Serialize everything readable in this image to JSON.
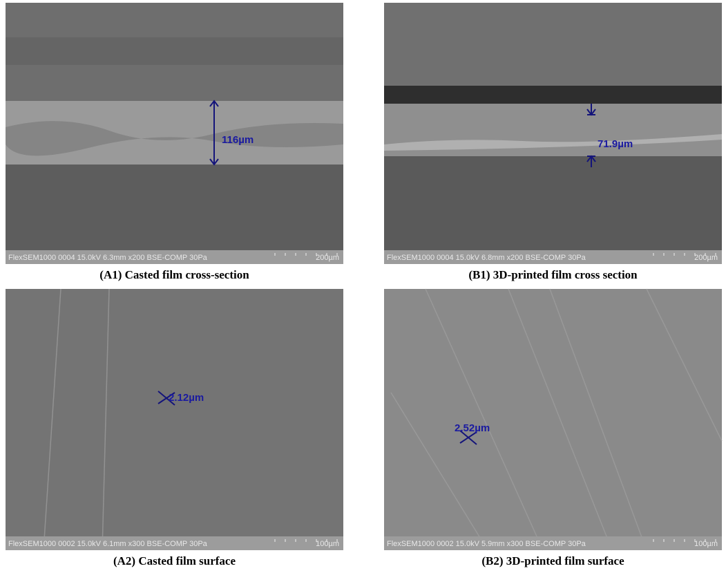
{
  "panels": [
    {
      "caption": "(A1) Casted film cross-section",
      "info": "FlexSEM1000 0004 15.0kV 6.3mm x200 BSE-COMP 30Pa",
      "scale": "200µm",
      "measurement": "116µm"
    },
    {
      "caption": "(B1) 3D-printed film cross section",
      "info": "FlexSEM1000 0004 15.0kV 6.8mm x200 BSE-COMP 30Pa",
      "scale": "200µm",
      "measurement": "71.9µm"
    },
    {
      "caption": "(A2) Casted film surface",
      "info": "FlexSEM1000 0002 15.0kV 6.1mm x300 BSE-COMP 30Pa",
      "scale": "100µm",
      "measurement": "2.12µm"
    },
    {
      "caption": "(B2) 3D-printed film surface",
      "info": "FlexSEM1000 0002 15.0kV 5.9mm x300 BSE-COMP 30Pa",
      "scale": "100µm",
      "measurement": "2.52µm"
    }
  ]
}
